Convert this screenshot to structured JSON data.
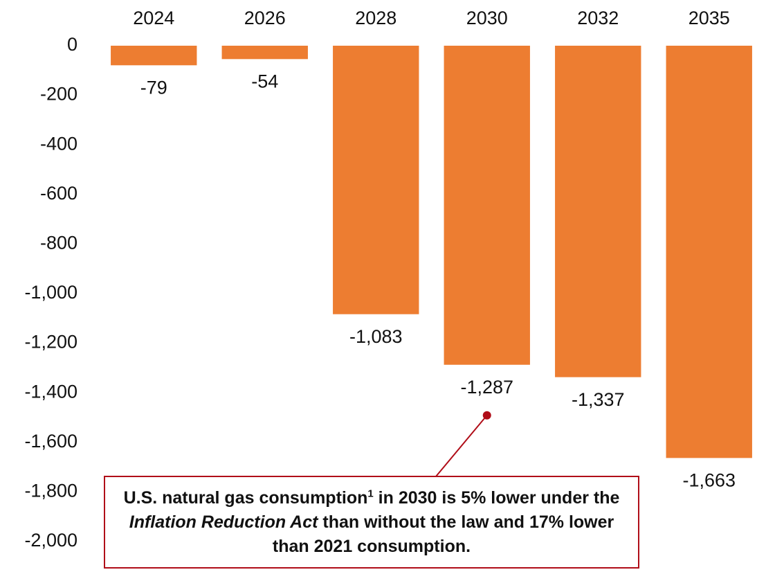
{
  "chart_data": {
    "type": "bar",
    "title": "",
    "xlabel": "",
    "ylabel": "",
    "categories": [
      "2024",
      "2026",
      "2028",
      "2030",
      "2032",
      "2035"
    ],
    "series": [
      {
        "values": [
          -79,
          -54,
          -1083,
          -1287,
          -1337,
          -1663
        ]
      }
    ],
    "data_labels": [
      "-79",
      "-54",
      "-1,083",
      "-1,287",
      "-1,337",
      "-1,663"
    ],
    "ylim": [
      -2000,
      0
    ],
    "yticks": [
      0,
      -200,
      -400,
      -600,
      -800,
      -1000,
      -1200,
      -1400,
      -1600,
      -1800,
      -2000
    ],
    "ytick_labels": [
      "0",
      "-200",
      "-400",
      "-600",
      "-800",
      "-1,000",
      "-1,200",
      "-1,400",
      "-1,600",
      "-1,800",
      "-2,000"
    ],
    "x_axis_position": "top",
    "grid": false,
    "legend": false,
    "colors": {
      "bar": "#ed7d31",
      "callout": "#b00d18"
    },
    "annotation": {
      "target": "2030",
      "text_before": "U.S. natural gas consumption",
      "superscript": "1",
      "text_middle": " in 2030 is 5% lower under the ",
      "italic": "Inflation Reduction Act",
      "text_after": " than without the law and 17% lower than 2021 consumption."
    }
  }
}
